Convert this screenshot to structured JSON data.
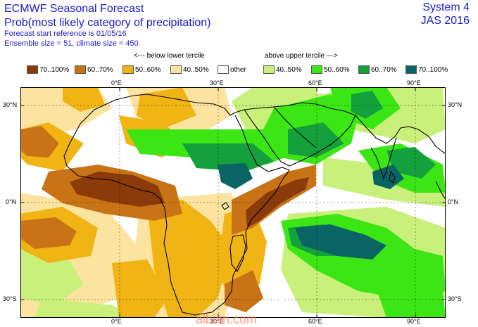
{
  "header": {
    "line1": "ECMWF Seasonal Forecast",
    "line2": "Prob(most likely category of precipitation)",
    "line3": "Forecast start reference is 01/05/16",
    "line4": "Ensemble size = 51, climate size = 450",
    "system": "System 4",
    "season": "JAS 2016"
  },
  "terciles": {
    "below": "<--- below lower tercile",
    "above": "above upper tercile --->"
  },
  "legend": [
    {
      "label": "70..100%",
      "color": "#8b3a0a"
    },
    {
      "label": "60..70%",
      "color": "#c87416"
    },
    {
      "label": "50..60%",
      "color": "#f0b414"
    },
    {
      "label": "40..50%",
      "color": "#fce4a0"
    },
    {
      "label": "other",
      "color": "#ffffff"
    },
    {
      "label": "40..50%",
      "color": "#c8f07a"
    },
    {
      "label": "50..60%",
      "color": "#3ce614"
    },
    {
      "label": "60..70%",
      "color": "#14a03c"
    },
    {
      "label": "70..100%",
      "color": "#0a6464"
    }
  ],
  "axes": {
    "top": [
      "0°E",
      "30°E",
      "60°E",
      "90°E"
    ],
    "bottom": [
      "0°E",
      "30°E",
      "60°E",
      "90°E"
    ],
    "left": [
      "30°N",
      "0°N",
      "30°S"
    ],
    "right": [
      "30°N",
      "0°N",
      "30°S"
    ]
  },
  "watermark": "albiari.com"
}
